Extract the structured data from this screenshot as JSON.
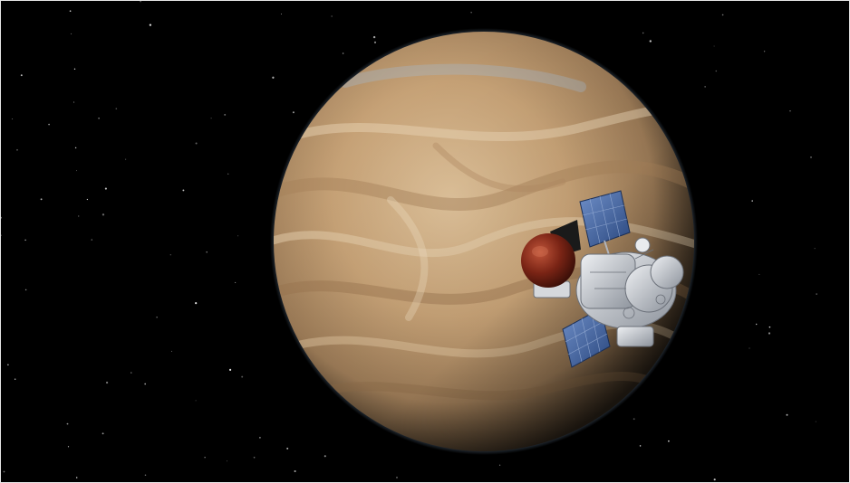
{
  "scene": {
    "subject": "planet",
    "craft": "spacecraft",
    "colors": {
      "space": "#000000",
      "planet_light": "#d8b98f",
      "planet_mid": "#b89266",
      "planet_dark": "#6e5a43",
      "atmosphere_rim": "#8fb1d6",
      "probe": "#7a2415",
      "panel": "#3b5f9f",
      "hull": "#c8ccd2"
    }
  }
}
